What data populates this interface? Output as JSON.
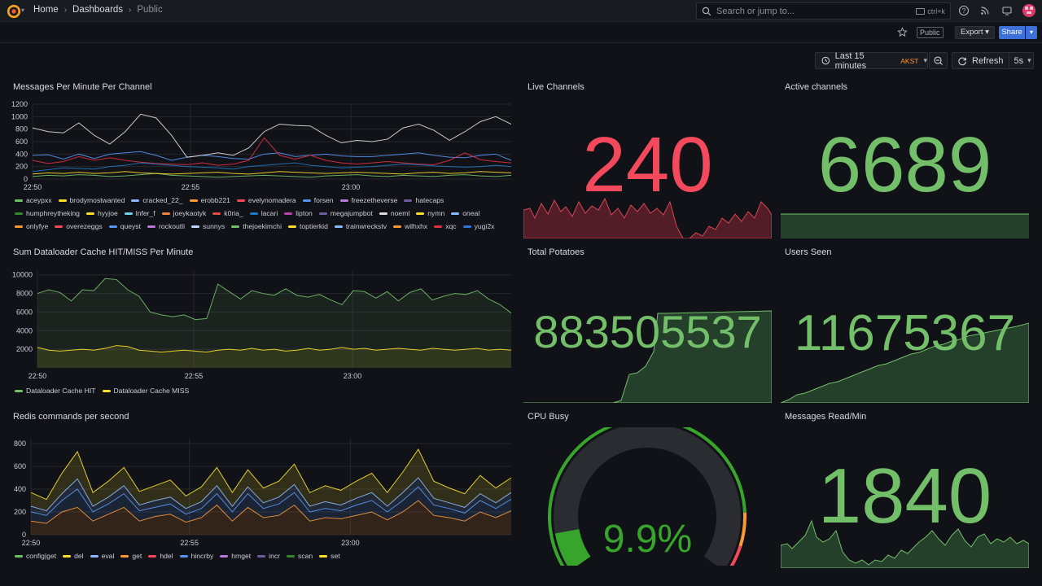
{
  "topbar": {
    "breadcrumb": [
      "Home",
      "Dashboards",
      "Public"
    ],
    "search_placeholder": "Search or jump to...",
    "search_shortcut": "ctrl+k",
    "icons": [
      "help-icon",
      "news-icon",
      "kiosk-icon"
    ]
  },
  "toolbar": {
    "public_badge": "Public",
    "export_label": "Export",
    "share_label": "Share"
  },
  "timepicker": {
    "range": "Last 15 minutes",
    "timezone": "AKST",
    "refresh_label": "Refresh",
    "interval": "5s"
  },
  "colors": {
    "green": "#73bf69",
    "red": "#f2495c",
    "yellow": "#fade2a",
    "orange": "#ff9830",
    "blue": "#5794f2",
    "purple": "#b877d9"
  },
  "panels": {
    "messages": {
      "title": "Messages Per Minute Per Channel",
      "legend": [
        {
          "name": "aceypxx",
          "color": "#73bf69"
        },
        {
          "name": "brodymostwanted",
          "color": "#fade2a"
        },
        {
          "name": "cracked_22_",
          "color": "#8ab8ff"
        },
        {
          "name": "erobb221",
          "color": "#ff9830"
        },
        {
          "name": "evelynomadera",
          "color": "#f2495c"
        },
        {
          "name": "forsen",
          "color": "#5794f2"
        },
        {
          "name": "freezetheverse",
          "color": "#b877d9"
        },
        {
          "name": "hatecaps",
          "color": "#705da0"
        },
        {
          "name": "humphreytheking",
          "color": "#37872d"
        },
        {
          "name": "hyyjoe",
          "color": "#fade2a"
        },
        {
          "name": "lnfer_f",
          "color": "#6ed0e0"
        },
        {
          "name": "joeykaotyk",
          "color": "#ef843c"
        },
        {
          "name": "k0ria_",
          "color": "#e24d42"
        },
        {
          "name": "lacari",
          "color": "#1f78c1"
        },
        {
          "name": "lipton",
          "color": "#ba43a9"
        },
        {
          "name": "megajumpbot",
          "color": "#705da0"
        },
        {
          "name": "noeml",
          "color": "#dddddd"
        },
        {
          "name": "nymn",
          "color": "#fade2a"
        },
        {
          "name": "oneal",
          "color": "#8ab8ff"
        },
        {
          "name": "onlyfye",
          "color": "#ff9830"
        },
        {
          "name": "overezeggs",
          "color": "#f2495c"
        },
        {
          "name": "queyst",
          "color": "#5794f2"
        },
        {
          "name": "rockoutli",
          "color": "#b877d9"
        },
        {
          "name": "sunnys",
          "color": "#c0d8ff"
        },
        {
          "name": "thejoekimchi",
          "color": "#73bf69"
        },
        {
          "name": "toptierkid",
          "color": "#fade2a"
        },
        {
          "name": "trainwreckstv",
          "color": "#8ab8ff"
        },
        {
          "name": "wilhxhx",
          "color": "#ff9830"
        },
        {
          "name": "xqc",
          "color": "#e02f44"
        },
        {
          "name": "yugi2x",
          "color": "#3274d9"
        }
      ]
    },
    "dataloader": {
      "title": "Sum Dataloader Cache HIT/MISS Per Minute",
      "legend": [
        {
          "name": "Dataloader Cache HIT",
          "color": "#73bf69"
        },
        {
          "name": "Dataloader Cache MISS",
          "color": "#fade2a"
        }
      ]
    },
    "redis": {
      "title": "Redis commands per second",
      "legend": [
        {
          "name": "config|get",
          "color": "#73bf69"
        },
        {
          "name": "del",
          "color": "#fade2a"
        },
        {
          "name": "eval",
          "color": "#8ab8ff"
        },
        {
          "name": "get",
          "color": "#ff9830"
        },
        {
          "name": "hdel",
          "color": "#f2495c"
        },
        {
          "name": "hincrby",
          "color": "#5794f2"
        },
        {
          "name": "hmget",
          "color": "#b877d9"
        },
        {
          "name": "incr",
          "color": "#705da0"
        },
        {
          "name": "scan",
          "color": "#37872d"
        },
        {
          "name": "set",
          "color": "#fade2a"
        }
      ]
    },
    "live_channels": {
      "title": "Live Channels",
      "value": "240",
      "color": "#f2495c"
    },
    "active_channels": {
      "title": "Active channels",
      "value": "6689",
      "color": "#73bf69"
    },
    "total_potatoes": {
      "title": "Total Potatoes",
      "value": "883505537",
      "color": "#73bf69"
    },
    "users_seen": {
      "title": "Users Seen",
      "value": "11675367",
      "color": "#73bf69"
    },
    "cpu_busy": {
      "title": "CPU Busy",
      "value": "9.9%",
      "percent": 9.9,
      "color": "#37a52b"
    },
    "messages_read": {
      "title": "Messages Read/Min",
      "value": "1840",
      "color": "#73bf69"
    }
  },
  "chart_data": [
    {
      "type": "line",
      "title": "Messages Per Minute Per Channel",
      "x_ticks": [
        "22:50",
        "22:55",
        "23:00"
      ],
      "y_ticks": [
        "0",
        "200",
        "400",
        "600",
        "800",
        "1000",
        "1200"
      ],
      "ylim": [
        0,
        1200
      ],
      "series": [
        {
          "name": "forsen",
          "values": [
            380,
            390,
            320,
            400,
            330,
            400,
            420,
            440,
            380,
            300,
            350,
            380,
            360,
            330,
            320,
            400,
            420,
            360,
            380,
            400,
            370,
            360,
            360,
            380,
            400,
            420,
            380,
            350,
            340,
            380,
            400,
            300
          ]
        },
        {
          "name": "noeml",
          "values": [
            820,
            760,
            740,
            900,
            700,
            560,
            760,
            1040,
            980,
            700,
            350,
            380,
            420,
            380,
            500,
            760,
            880,
            860,
            850,
            700,
            580,
            620,
            600,
            640,
            820,
            880,
            780,
            620,
            760,
            920,
            1000,
            880
          ]
        },
        {
          "name": "xqc",
          "values": [
            300,
            250,
            280,
            360,
            300,
            340,
            300,
            270,
            250,
            240,
            230,
            260,
            220,
            240,
            300,
            660,
            380,
            320,
            380,
            300,
            260,
            240,
            260,
            280,
            260,
            240,
            230,
            300,
            420,
            310,
            280,
            260
          ]
        },
        {
          "name": "lacari",
          "values": [
            120,
            150,
            180,
            170,
            160,
            200,
            220,
            260,
            240,
            220,
            200,
            190,
            180,
            160,
            200,
            220,
            240,
            260,
            220,
            200,
            180,
            190,
            200,
            220,
            240,
            230,
            210,
            200,
            190,
            200,
            220,
            200
          ]
        },
        {
          "name": "aceypxx",
          "values": [
            40,
            60,
            50,
            70,
            60,
            40,
            50,
            70,
            90,
            60,
            50,
            40,
            30,
            40,
            50,
            60,
            50,
            40,
            30,
            50,
            60,
            70,
            50,
            40,
            60,
            50,
            40,
            60,
            70,
            50,
            40,
            60
          ]
        },
        {
          "name": "brodymostwanted",
          "values": [
            80,
            100,
            90,
            110,
            90,
            100,
            120,
            100,
            90,
            80,
            90,
            100,
            110,
            90,
            80,
            100,
            120,
            110,
            100,
            90,
            100,
            110,
            100,
            90,
            80,
            100,
            110,
            90,
            100,
            120,
            110,
            100
          ]
        }
      ]
    },
    {
      "type": "area",
      "title": "Sum Dataloader Cache HIT/MISS Per Minute",
      "x_ticks": [
        "22:50",
        "22:55",
        "23:00"
      ],
      "y_ticks": [
        "2000",
        "4000",
        "6000",
        "8000",
        "10000"
      ],
      "ylim": [
        0,
        10500
      ],
      "series": [
        {
          "name": "Dataloader Cache HIT",
          "values": [
            8000,
            8400,
            8100,
            7200,
            8400,
            8300,
            9600,
            9500,
            8400,
            7700,
            6000,
            5700,
            5500,
            5700,
            5200,
            5300,
            9000,
            8200,
            7400,
            8300,
            8000,
            7800,
            8500,
            7800,
            7600,
            7900,
            7300,
            6800,
            8300,
            8200,
            7500,
            8200,
            7200,
            8100,
            8500,
            7300,
            7700,
            8000,
            7900,
            8300,
            7400,
            6800,
            5900
          ]
        },
        {
          "name": "Dataloader Cache MISS",
          "values": [
            2200,
            1900,
            1800,
            1900,
            2000,
            1900,
            2100,
            2400,
            2300,
            1900,
            1800,
            1700,
            1800,
            1900,
            1800,
            1700,
            1900,
            2000,
            1900,
            2100,
            1900,
            2000,
            1800,
            1900,
            2100,
            1900,
            2000,
            2200,
            2000,
            2100,
            1900,
            2000,
            2100,
            2000,
            1900,
            2100,
            2000,
            1900,
            2000,
            2100,
            1900,
            2000,
            1900
          ]
        }
      ]
    },
    {
      "type": "area",
      "title": "Redis commands per second",
      "stacked": true,
      "x_ticks": [
        "22:50",
        "22:55",
        "23:00"
      ],
      "y_ticks": [
        "0",
        "200",
        "400",
        "600",
        "800"
      ],
      "ylim": [
        0,
        850
      ],
      "series": [
        {
          "name": "get",
          "values": [
            120,
            100,
            200,
            240,
            120,
            180,
            240,
            120,
            160,
            180,
            110,
            150,
            260,
            120,
            240,
            150,
            170,
            260,
            120,
            150,
            140,
            170,
            200,
            130,
            200,
            300,
            170,
            150,
            120,
            200,
            150,
            210
          ]
        },
        {
          "name": "hincrby",
          "values": [
            80,
            70,
            100,
            160,
            80,
            90,
            120,
            90,
            80,
            90,
            70,
            80,
            100,
            80,
            120,
            80,
            100,
            110,
            80,
            80,
            70,
            90,
            100,
            70,
            100,
            120,
            90,
            80,
            70,
            100,
            80,
            100
          ]
        },
        {
          "name": "eval",
          "values": [
            50,
            40,
            60,
            90,
            50,
            60,
            70,
            50,
            60,
            60,
            50,
            60,
            70,
            50,
            60,
            50,
            60,
            70,
            50,
            60,
            50,
            60,
            70,
            50,
            70,
            80,
            60,
            50,
            50,
            60,
            50,
            60
          ]
        },
        {
          "name": "del",
          "values": [
            120,
            100,
            180,
            240,
            120,
            140,
            160,
            120,
            130,
            150,
            110,
            130,
            160,
            120,
            150,
            130,
            140,
            180,
            120,
            140,
            130,
            150,
            170,
            120,
            180,
            250,
            150,
            130,
            120,
            160,
            130,
            130
          ]
        }
      ]
    }
  ]
}
